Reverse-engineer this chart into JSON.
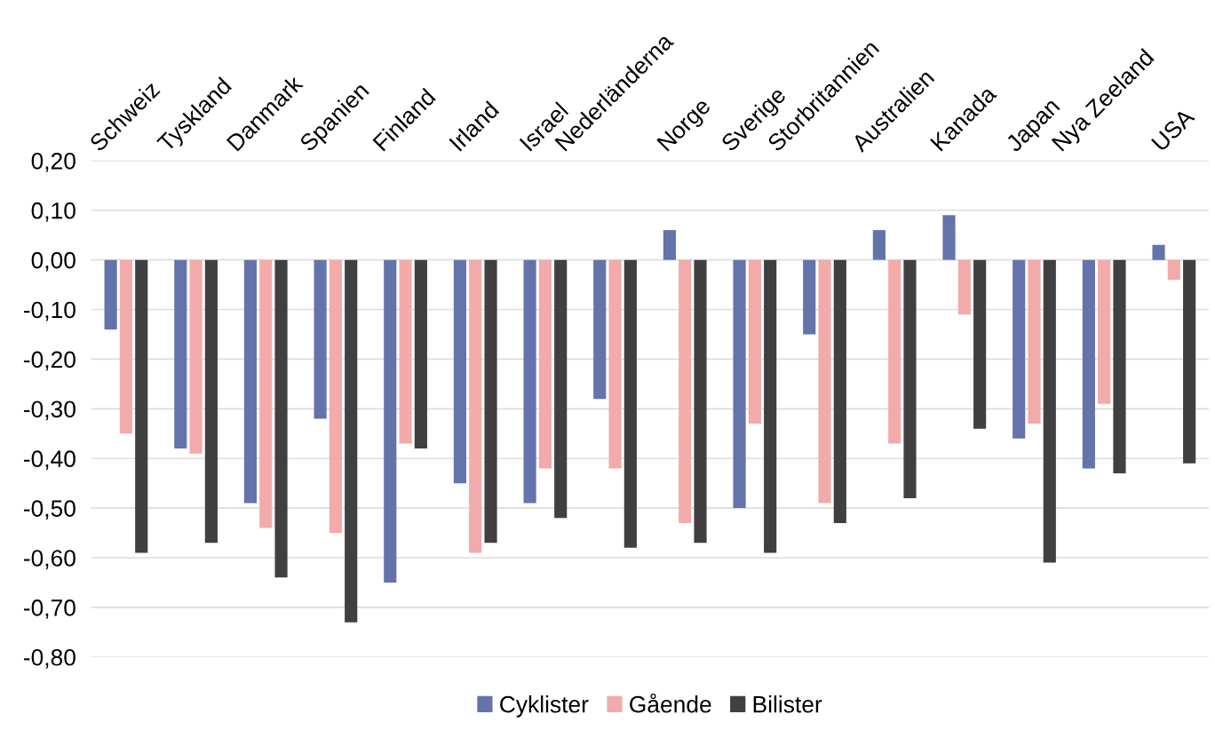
{
  "chart_data": {
    "type": "bar",
    "categories": [
      "Schweiz",
      "Tyskland",
      "Danmark",
      "Spanien",
      "Finland",
      "Irland",
      "Israel",
      "Nederländerna",
      "Norge",
      "Sverige",
      "Storbritannien",
      "Australien",
      "Kanada",
      "Japan",
      "Nya Zeeland",
      "USA"
    ],
    "series": [
      {
        "name": "Cyklister",
        "color": "#6474aa",
        "values": [
          -0.14,
          -0.38,
          -0.49,
          -0.32,
          -0.65,
          -0.45,
          -0.49,
          -0.28,
          0.06,
          -0.5,
          -0.15,
          0.06,
          0.09,
          -0.36,
          -0.42,
          0.03
        ]
      },
      {
        "name": "Gående",
        "color": "#f2aaaa",
        "values": [
          -0.35,
          -0.39,
          -0.54,
          -0.55,
          -0.37,
          -0.59,
          -0.42,
          -0.42,
          -0.53,
          -0.33,
          -0.49,
          -0.37,
          -0.11,
          -0.33,
          -0.29,
          -0.04
        ]
      },
      {
        "name": "Bilister",
        "color": "#404040",
        "values": [
          -0.59,
          -0.57,
          -0.64,
          -0.73,
          -0.38,
          -0.57,
          -0.52,
          -0.58,
          -0.57,
          -0.59,
          -0.53,
          -0.48,
          -0.34,
          -0.61,
          -0.43,
          -0.41
        ]
      }
    ],
    "ylim": [
      -0.8,
      0.2
    ],
    "yticks": [
      {
        "value": -0.8,
        "label": "-0,80"
      },
      {
        "value": -0.7,
        "label": "-0,70"
      },
      {
        "value": -0.6,
        "label": "-0,60"
      },
      {
        "value": -0.5,
        "label": "-0,50"
      },
      {
        "value": -0.4,
        "label": "-0,40"
      },
      {
        "value": -0.3,
        "label": "-0,30"
      },
      {
        "value": -0.2,
        "label": "-0,20"
      },
      {
        "value": -0.1,
        "label": "-0,10"
      },
      {
        "value": 0,
        "label": "0,00"
      },
      {
        "value": 0.1,
        "label": "0,10"
      },
      {
        "value": 0.2,
        "label": "0,20"
      }
    ],
    "grid": "y",
    "legend": "bottom"
  }
}
